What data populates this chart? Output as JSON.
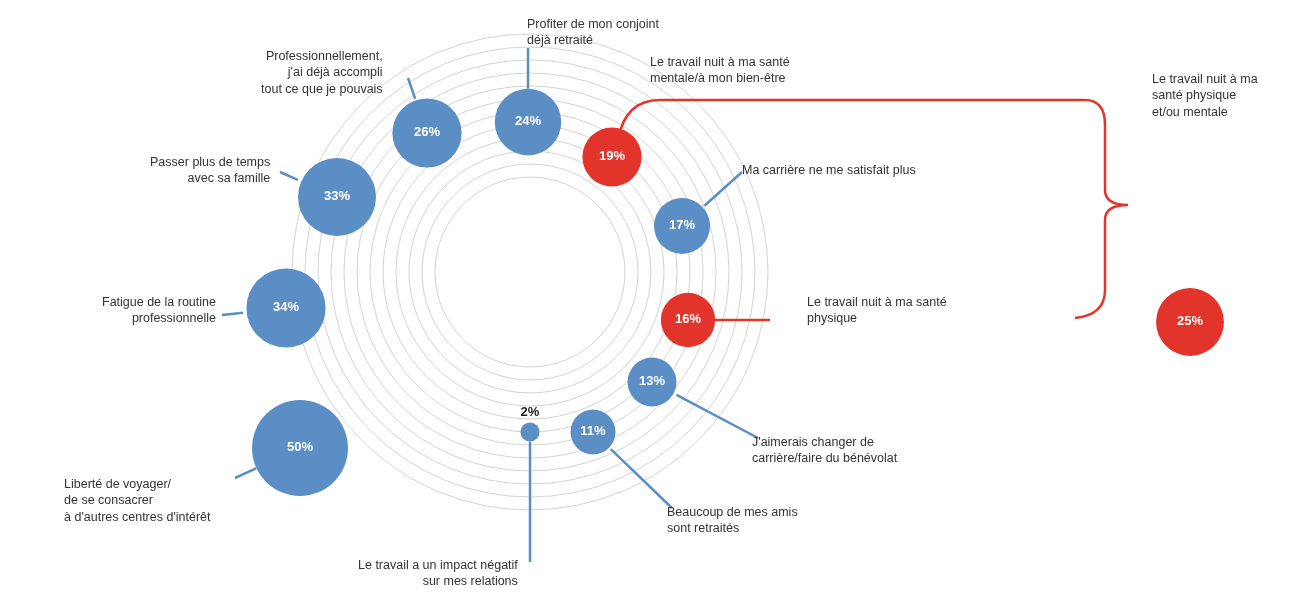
{
  "chart_data": {
    "type": "other",
    "categories": [
      "Profiter de mon conjoint déjà retraité",
      "Le travail nuit à ma santé mentale/à mon bien-être",
      "Ma carrière ne me satisfait plus",
      "Le travail nuit à ma santé physique",
      "J'aimerais changer de carrière/faire du bénévolat",
      "Beaucoup de mes amis sont retraités",
      "Le travail a un impact négatif sur mes relations",
      "Liberté de voyager/ de se consacrer à d'autres centres d'intérêt",
      "Fatigue de la routine professionnelle",
      "Passer plus de temps avec sa famille",
      "Professionnellement, j'ai déjà accompli tout ce que je pouvais",
      "Le travail nuit à ma santé physique et/ou mentale"
    ],
    "values": [
      24,
      19,
      17,
      16,
      13,
      11,
      2,
      50,
      34,
      33,
      26,
      25
    ],
    "value_labels": [
      "24%",
      "19%",
      "17%",
      "16%",
      "13%",
      "11%",
      "2%",
      "50%",
      "34%",
      "33%",
      "26%",
      "25%"
    ],
    "colors": [
      "#5b8ec4",
      "#e3342b",
      "#5b8ec4",
      "#e3342b",
      "#5b8ec4",
      "#5b8ec4",
      "#5b8ec4",
      "#5b8ec4",
      "#5b8ec4",
      "#5b8ec4",
      "#5b8ec4",
      "#e3342b"
    ]
  }
}
